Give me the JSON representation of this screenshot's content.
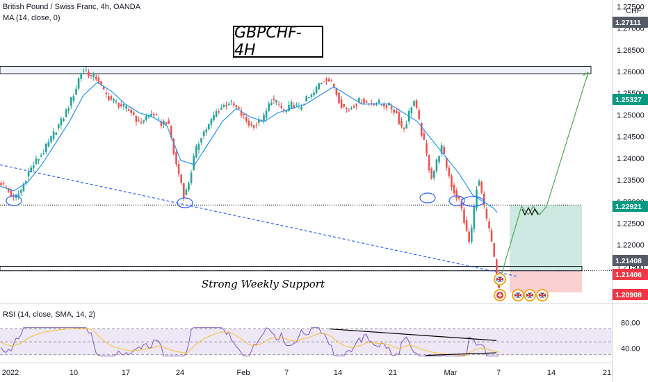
{
  "header": {
    "symbol_line": "British Pound / Swiss Franc, 4h, OANDA",
    "ma_line": "MA (14, close, 0)",
    "currency": "CHF"
  },
  "annotations": {
    "title": "GBPCHF-4H",
    "support_label": "Strong Weekly Support"
  },
  "rsi_legend": "RSI (14, close, SMA, 14, 2)",
  "colors": {
    "up": "#26a69a",
    "down": "#ef5350",
    "ma": "#2196f3",
    "rsi": "#7e57c2",
    "rsi_ma": "#fbc02d",
    "trendline": "#2962ff",
    "target_arrow": "#43a047",
    "profit_zone": "#cde9e1",
    "loss_zone": "#fbd0d0",
    "resistance_zone": "#eef1f6"
  },
  "chart_data": {
    "type": "candlestick",
    "price_axis": {
      "ticks": [
        "1.27500",
        "1.27000",
        "1.26500",
        "1.26000",
        "1.25500",
        "1.25000",
        "1.24500",
        "1.24000",
        "1.23500",
        "1.23000",
        "1.22500",
        "1.22000",
        "1.21500"
      ],
      "ylim": [
        1.2065,
        1.2765
      ]
    },
    "time_axis": {
      "labels": [
        "2022",
        "10",
        "17",
        "24",
        "Feb",
        "7",
        "14",
        "21",
        "Mar",
        "7",
        "14",
        "21"
      ]
    },
    "price_labels": [
      {
        "value": "1.27111",
        "color": "#555b66"
      },
      {
        "value": "1.25327",
        "color": "#089981"
      },
      {
        "value": "1.22921",
        "color": "#089981"
      },
      {
        "value": "1.21408",
        "color": "#555b66"
      },
      {
        "value": "1.21406",
        "color": "#f23645"
      },
      {
        "value": "1.20908",
        "color": "#f23645"
      }
    ],
    "close_path": [
      [
        0,
        1.2345
      ],
      [
        10,
        1.233
      ],
      [
        20,
        1.2305
      ],
      [
        30,
        1.2325
      ],
      [
        40,
        1.2365
      ],
      [
        50,
        1.239
      ],
      [
        60,
        1.241
      ],
      [
        70,
        1.2435
      ],
      [
        80,
        1.2465
      ],
      [
        90,
        1.249
      ],
      [
        100,
        1.2525
      ],
      [
        110,
        1.2565
      ],
      [
        115,
        1.2595
      ],
      [
        122,
        1.2605
      ],
      [
        130,
        1.259
      ],
      [
        140,
        1.2585
      ],
      [
        150,
        1.255
      ],
      [
        160,
        1.2535
      ],
      [
        170,
        1.2525
      ],
      [
        180,
        1.2515
      ],
      [
        190,
        1.2505
      ],
      [
        200,
        1.248
      ],
      [
        210,
        1.2495
      ],
      [
        220,
        1.2505
      ],
      [
        230,
        1.248
      ],
      [
        240,
        1.2485
      ],
      [
        245,
        1.246
      ],
      [
        250,
        1.241
      ],
      [
        255,
        1.2375
      ],
      [
        260,
        1.235
      ],
      [
        265,
        1.231
      ],
      [
        270,
        1.2335
      ],
      [
        275,
        1.237
      ],
      [
        280,
        1.241
      ],
      [
        290,
        1.2455
      ],
      [
        300,
        1.2475
      ],
      [
        310,
        1.2505
      ],
      [
        320,
        1.252
      ],
      [
        330,
        1.253
      ],
      [
        340,
        1.2515
      ],
      [
        350,
        1.2495
      ],
      [
        360,
        1.2475
      ],
      [
        370,
        1.248
      ],
      [
        380,
        1.2495
      ],
      [
        390,
        1.2535
      ],
      [
        400,
        1.2525
      ],
      [
        410,
        1.2505
      ],
      [
        420,
        1.2525
      ],
      [
        430,
        1.2515
      ],
      [
        440,
        1.2535
      ],
      [
        450,
        1.2545
      ],
      [
        460,
        1.2575
      ],
      [
        470,
        1.2585
      ],
      [
        480,
        1.2565
      ],
      [
        485,
        1.2545
      ],
      [
        490,
        1.2525
      ],
      [
        500,
        1.251
      ],
      [
        510,
        1.2525
      ],
      [
        520,
        1.2535
      ],
      [
        530,
        1.2525
      ],
      [
        540,
        1.253
      ],
      [
        550,
        1.2525
      ],
      [
        560,
        1.252
      ],
      [
        570,
        1.2505
      ],
      [
        575,
        1.248
      ],
      [
        580,
        1.2465
      ],
      [
        585,
        1.2485
      ],
      [
        590,
        1.2515
      ],
      [
        595,
        1.2535
      ],
      [
        600,
        1.2505
      ],
      [
        605,
        1.2465
      ],
      [
        610,
        1.2435
      ],
      [
        615,
        1.2395
      ],
      [
        620,
        1.2355
      ],
      [
        625,
        1.2375
      ],
      [
        630,
        1.2405
      ],
      [
        635,
        1.2425
      ],
      [
        640,
        1.2395
      ],
      [
        645,
        1.2365
      ],
      [
        650,
        1.2335
      ],
      [
        655,
        1.2315
      ],
      [
        660,
        1.2305
      ],
      [
        665,
        1.2275
      ],
      [
        670,
        1.2235
      ],
      [
        675,
        1.2205
      ],
      [
        680,
        1.2255
      ],
      [
        685,
        1.2335
      ],
      [
        690,
        1.2345
      ],
      [
        695,
        1.2295
      ],
      [
        700,
        1.2255
      ],
      [
        705,
        1.2225
      ],
      [
        710,
        1.2175
      ],
      [
        715,
        1.2125
      ],
      [
        719,
        1.2093
      ]
    ],
    "ma_path": [
      [
        0,
        1.2335
      ],
      [
        20,
        1.2325
      ],
      [
        40,
        1.2345
      ],
      [
        60,
        1.2385
      ],
      [
        80,
        1.2435
      ],
      [
        100,
        1.2485
      ],
      [
        120,
        1.2545
      ],
      [
        140,
        1.2575
      ],
      [
        160,
        1.2555
      ],
      [
        180,
        1.2525
      ],
      [
        200,
        1.2505
      ],
      [
        220,
        1.2495
      ],
      [
        240,
        1.2475
      ],
      [
        260,
        1.2395
      ],
      [
        280,
        1.2385
      ],
      [
        300,
        1.2435
      ],
      [
        320,
        1.2485
      ],
      [
        340,
        1.2515
      ],
      [
        360,
        1.2495
      ],
      [
        380,
        1.2485
      ],
      [
        400,
        1.2505
      ],
      [
        420,
        1.2515
      ],
      [
        440,
        1.2525
      ],
      [
        460,
        1.2545
      ],
      [
        480,
        1.2565
      ],
      [
        500,
        1.2545
      ],
      [
        520,
        1.2525
      ],
      [
        540,
        1.2525
      ],
      [
        560,
        1.2525
      ],
      [
        580,
        1.2505
      ],
      [
        600,
        1.2485
      ],
      [
        620,
        1.2445
      ],
      [
        640,
        1.2405
      ],
      [
        660,
        1.2365
      ],
      [
        680,
        1.2315
      ],
      [
        700,
        1.2295
      ],
      [
        710,
        1.2285
      ],
      [
        715,
        1.2275
      ]
    ],
    "levels": {
      "resistance_zone": [
        1.2595,
        1.2612
      ],
      "neckline": 1.22921,
      "support_zone": [
        1.21406,
        1.21506
      ],
      "trendline_start": 1.2385,
      "trendline_end": 1.2127,
      "target": 1.2598,
      "stop": 1.20908,
      "entry": 1.21408
    },
    "rsi": {
      "ticks": [
        "80.00",
        "40.00"
      ],
      "ylim": [
        20,
        90
      ],
      "upper": 70,
      "mid": 50,
      "lower": 30
    }
  }
}
